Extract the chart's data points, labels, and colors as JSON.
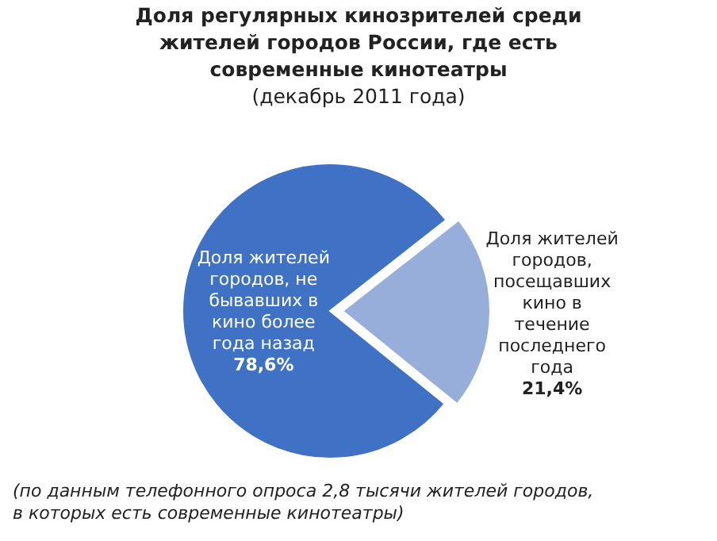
{
  "chart_data": {
    "type": "pie",
    "title": "Доля регулярных кинозрителей среди жителей городов России, где есть современные кинотеатры",
    "subtitle": "(декабрь 2011 года)",
    "categories": [
      "Доля жителей городов, не бывавших в кино более года назад",
      "Доля жителей городов, посещавших кино в течение последнего года"
    ],
    "values": [
      78.6,
      21.4
    ],
    "colors": [
      "#3f72c4",
      "#97aedb"
    ],
    "value_labels": [
      "78,6%",
      "21,4%"
    ],
    "annotations": [
      "(по данным телефонного опроса 2,8 тысячи жителей городов, в которых есть современные кинотеатры)"
    ]
  }
}
